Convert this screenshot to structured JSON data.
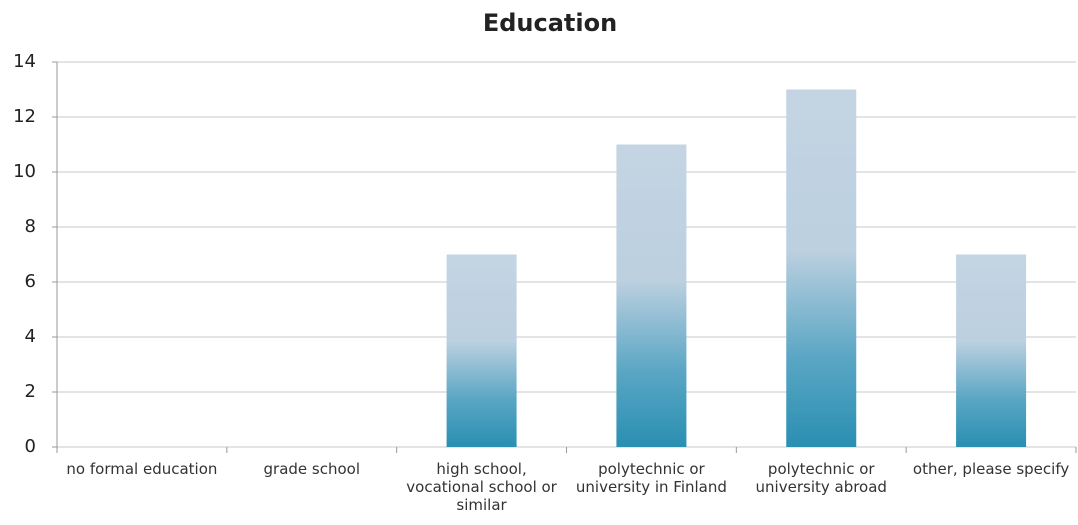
{
  "chart_data": {
    "type": "bar",
    "title": "Education",
    "categories": [
      "no formal education",
      "grade school",
      "high school, vocational school or similar",
      "polytechnic or university in Finland",
      "polytechnic or university abroad",
      "other, please specify"
    ],
    "values": [
      0,
      0,
      7,
      11,
      13,
      7
    ],
    "color": "#2a8fb2",
    "ylim": [
      0,
      14
    ],
    "yticks": [
      0,
      2,
      4,
      6,
      8,
      10,
      12,
      14
    ],
    "grid": true
  }
}
